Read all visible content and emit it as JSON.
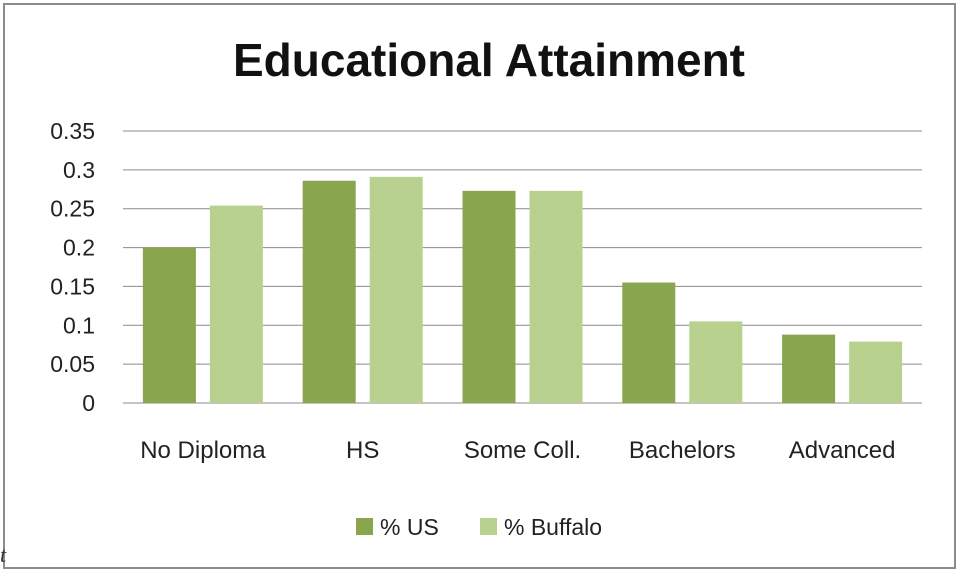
{
  "chart_data": {
    "type": "bar",
    "title": "Educational Attainment",
    "xlabel": "",
    "ylabel": "",
    "categories": [
      "No Diploma",
      "HS",
      "Some Coll.",
      "Bachelors",
      "Advanced"
    ],
    "series": [
      {
        "name": "% US",
        "values": [
          0.2,
          0.286,
          0.273,
          0.155,
          0.088
        ]
      },
      {
        "name": "% Buffalo",
        "values": [
          0.254,
          0.291,
          0.273,
          0.105,
          0.079
        ]
      }
    ],
    "ylim": [
      0,
      0.35
    ],
    "yticks": [
      "0",
      "0.05",
      "0.1",
      "0.15",
      "0.2",
      "0.25",
      "0.3",
      "0.35"
    ],
    "grid": true,
    "legend_position": "bottom",
    "colors": {
      "series0": "#89a54e",
      "series1": "#b9d18f",
      "grid": "#8a8a8a"
    }
  },
  "stray_text": "t"
}
